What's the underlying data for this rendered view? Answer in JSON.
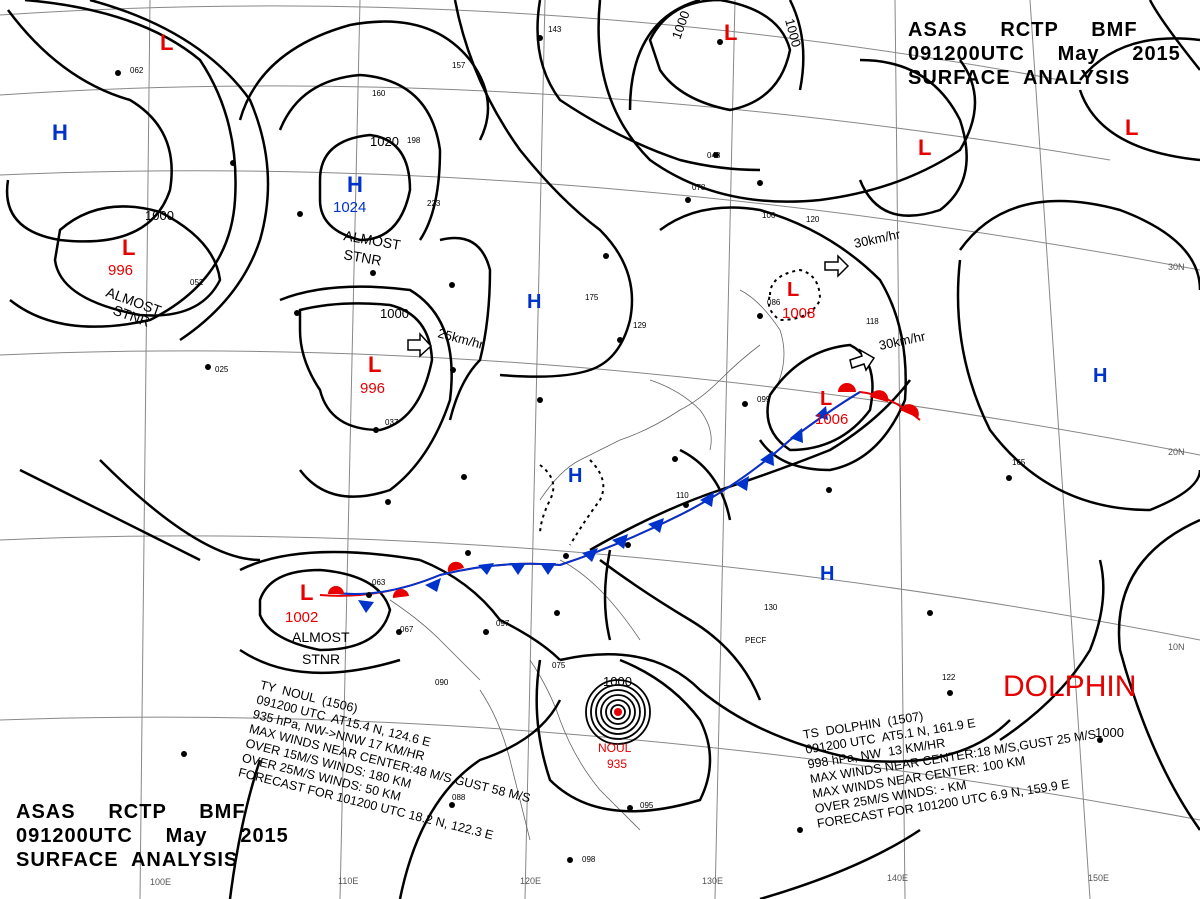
{
  "header": {
    "line1": "ASAS     RCTP     BMF",
    "line2": "091200UTC     May     2015",
    "line3": "SURFACE  ANALYSIS"
  },
  "colors": {
    "isobar": "#000000",
    "low": "#e60000",
    "high": "#0033cc",
    "graticule": "#999999"
  },
  "isobar_labels": [
    "1000",
    "1000",
    "1020",
    "1000",
    "1000",
    "1000",
    "1000"
  ],
  "longitudes": [
    "100E",
    "110E",
    "120E",
    "130E",
    "140E",
    "150E"
  ],
  "latitudes": [
    "30N",
    "20N",
    "10N"
  ],
  "pressure_systems": [
    {
      "type": "L",
      "value": ""
    },
    {
      "type": "L",
      "value": ""
    },
    {
      "type": "L",
      "value": ""
    },
    {
      "type": "L",
      "value": ""
    },
    {
      "type": "H",
      "value": ""
    },
    {
      "type": "L",
      "value": "996"
    },
    {
      "type": "H",
      "value": "1024"
    },
    {
      "type": "L",
      "value": "996"
    },
    {
      "type": "H",
      "value": ""
    },
    {
      "type": "L",
      "value": "1008"
    },
    {
      "type": "H",
      "value": ""
    },
    {
      "type": "L",
      "value": "1006"
    },
    {
      "type": "H",
      "value": ""
    },
    {
      "type": "H",
      "value": ""
    },
    {
      "type": "L",
      "value": "1002"
    }
  ],
  "stationary_labels": [
    {
      "line1": "ALMOST",
      "line2": "STNR"
    },
    {
      "line1": "ALMOST",
      "line2": "STNR"
    },
    {
      "line1": "ALMOST",
      "line2": "STNR"
    }
  ],
  "motions": [
    "30km/hr",
    "25km/hr",
    "30km/hr"
  ],
  "typhoon": {
    "label": "NOUL",
    "pressure": "935",
    "info": [
      "TY  NOUL  (1506)",
      "091200 UTC  AT15.4 N, 124.6 E",
      "935 hPa, NW->NNW 17 KM/HR",
      "MAX WINDS NEAR CENTER:48 M/S,GUST 58 M/S",
      "OVER 15M/S WINDS: 180 KM",
      "OVER 25M/S WINDS: 50 KM",
      "FORECAST FOR 101200 UTC 18.2 N, 122.3 E"
    ]
  },
  "dolphin": {
    "label": "DOLPHIN",
    "info": [
      "TS  DOLPHIN  (1507)",
      "091200 UTC  AT5.1 N, 161.9 E",
      "998 hPa, NW  13 KM/HR",
      "MAX WINDS NEAR CENTER:18 M/S,GUST 25 M/S",
      "MAX WINDS NEAR CENTER: 100 KM",
      "OVER 25M/S WINDS: - KM",
      "FORECAST FOR 101200 UTC 6.9 N, 159.9 E"
    ]
  },
  "station_codes": [
    "143",
    "157",
    "160",
    "198",
    "223",
    "175",
    "129",
    "048",
    "078",
    "106",
    "120",
    "118",
    "086",
    "099",
    "165",
    "130",
    "122",
    "110",
    "097",
    "063",
    "067",
    "090",
    "075",
    "095",
    "098",
    "088",
    "037",
    "025",
    "062",
    "052"
  ],
  "station_tag": "PECF"
}
